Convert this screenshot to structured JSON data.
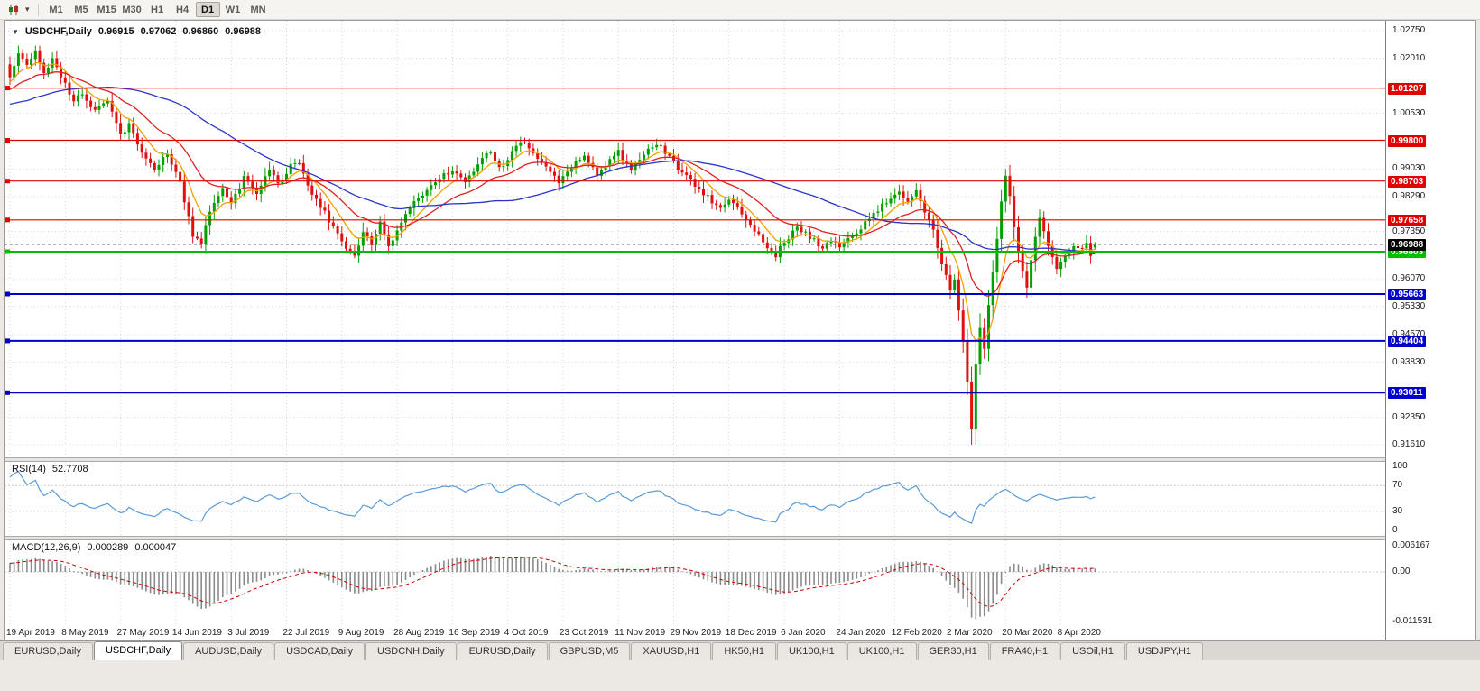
{
  "toolbar": {
    "chart_type_icon": "candlestick-chart-icon",
    "dropdown_icon": "chevron-down-icon",
    "periods": [
      "M1",
      "M5",
      "M15",
      "M30",
      "H1",
      "H4",
      "D1",
      "W1",
      "MN"
    ],
    "active_period": "D1"
  },
  "chart": {
    "title": "USDCHF,Daily",
    "ohlc": {
      "open": "0.96915",
      "high": "0.97062",
      "low": "0.96860",
      "close": "0.96988"
    },
    "current_price": "0.96988",
    "price_axis_ticks": [
      "1.02750",
      "1.02010",
      "1.00530",
      "0.99030",
      "0.98290",
      "0.97350",
      "0.96070",
      "0.95330",
      "0.94570",
      "0.93830",
      "0.92350",
      "0.91610"
    ],
    "hlines": [
      {
        "value": "1.01207",
        "color": "#e00000",
        "kind": "resistance"
      },
      {
        "value": "0.99800",
        "color": "#e00000",
        "kind": "resistance"
      },
      {
        "value": "0.98703",
        "color": "#e00000",
        "kind": "resistance"
      },
      {
        "value": "0.97658",
        "color": "#e00000",
        "kind": "resistance"
      },
      {
        "value": "0.96803",
        "color": "#00bb00",
        "kind": "level"
      },
      {
        "value": "0.95663",
        "color": "#0000cc",
        "kind": "support"
      },
      {
        "value": "0.94404",
        "color": "#0000cc",
        "kind": "support"
      },
      {
        "value": "0.93011",
        "color": "#0000cc",
        "kind": "support"
      }
    ],
    "date_ticks": [
      "19 Apr 2019",
      "8 May 2019",
      "27 May 2019",
      "14 Jun 2019",
      "3 Jul 2019",
      "22 Jul 2019",
      "9 Aug 2019",
      "28 Aug 2019",
      "16 Sep 2019",
      "4 Oct 2019",
      "23 Oct 2019",
      "11 Nov 2019",
      "29 Nov 2019",
      "18 Dec 2019",
      "6 Jan 2020",
      "24 Jan 2020",
      "12 Feb 2020",
      "2 Mar 2020",
      "20 Mar 2020",
      "8 Apr 2020"
    ]
  },
  "rsi": {
    "label": "RSI(14)",
    "value": "52.7708",
    "levels": [
      "100",
      "70",
      "30",
      "0"
    ]
  },
  "macd": {
    "label": "MACD(12,26,9)",
    "value_main": "0.000289",
    "value_signal": "0.000047",
    "levels": [
      "0.006167",
      "0.00",
      "-0.011531"
    ]
  },
  "tabs": {
    "items": [
      "EURUSD,Daily",
      "USDCHF,Daily",
      "AUDUSD,Daily",
      "USDCAD,Daily",
      "USDCNH,Daily",
      "EURUSD,Daily",
      "GBPUSD,M5",
      "XAUUSD,H1",
      "HK50,H1",
      "UK100,H1",
      "UK100,H1",
      "GER30,H1",
      "FRA40,H1",
      "USOil,H1",
      "USDJPY,H1"
    ],
    "active_index": 1
  },
  "chart_data": {
    "type": "candlestick",
    "symbol": "USDCHF",
    "timeframe": "D1",
    "visible_range": {
      "price_top": 1.0275,
      "price_bottom": 0.9161,
      "first_date": "19 Apr 2019",
      "last_date": "8 Apr 2020"
    },
    "bars_per_gridline": 13,
    "bar_count": 256,
    "last_bar": {
      "open": 0.96915,
      "high": 0.97062,
      "low": 0.9686,
      "close": 0.96988
    },
    "extremes": {
      "crash_low": {
        "index": 226,
        "price": 0.9161
      },
      "rebound_high": {
        "index": 234,
        "price": 0.9903
      }
    },
    "close_path_anchors": [
      [
        0,
        1.015
      ],
      [
        2,
        1.021
      ],
      [
        4,
        1.0185
      ],
      [
        6,
        1.0218
      ],
      [
        8,
        1.016
      ],
      [
        10,
        1.0192
      ],
      [
        13,
        1.0135
      ],
      [
        15,
        1.0082
      ],
      [
        17,
        1.011
      ],
      [
        20,
        1.006
      ],
      [
        23,
        1.0086
      ],
      [
        26,
        0.9996
      ],
      [
        28,
        1.0022
      ],
      [
        31,
        0.9946
      ],
      [
        34,
        0.9902
      ],
      [
        37,
        0.9944
      ],
      [
        40,
        0.9862
      ],
      [
        43,
        0.9726
      ],
      [
        45,
        0.97
      ],
      [
        47,
        0.9788
      ],
      [
        50,
        0.9846
      ],
      [
        52,
        0.982
      ],
      [
        55,
        0.9876
      ],
      [
        58,
        0.9846
      ],
      [
        61,
        0.9898
      ],
      [
        63,
        0.9866
      ],
      [
        66,
        0.9906
      ],
      [
        68,
        0.992
      ],
      [
        70,
        0.9856
      ],
      [
        73,
        0.98
      ],
      [
        76,
        0.9746
      ],
      [
        78,
        0.9712
      ],
      [
        81,
        0.9662
      ],
      [
        83,
        0.973
      ],
      [
        85,
        0.9696
      ],
      [
        87,
        0.9756
      ],
      [
        89,
        0.9686
      ],
      [
        91,
        0.9736
      ],
      [
        94,
        0.98
      ],
      [
        97,
        0.984
      ],
      [
        100,
        0.9868
      ],
      [
        104,
        0.99
      ],
      [
        107,
        0.9868
      ],
      [
        110,
        0.9916
      ],
      [
        113,
        0.9948
      ],
      [
        115,
        0.9906
      ],
      [
        117,
        0.993
      ],
      [
        120,
        0.9982
      ],
      [
        123,
        0.9946
      ],
      [
        126,
        0.9906
      ],
      [
        129,
        0.9872
      ],
      [
        132,
        0.9912
      ],
      [
        135,
        0.9936
      ],
      [
        138,
        0.989
      ],
      [
        141,
        0.992
      ],
      [
        143,
        0.9946
      ],
      [
        146,
        0.9902
      ],
      [
        149,
        0.9938
      ],
      [
        152,
        0.9972
      ],
      [
        155,
        0.9936
      ],
      [
        158,
        0.9896
      ],
      [
        161,
        0.9856
      ],
      [
        164,
        0.9828
      ],
      [
        167,
        0.9796
      ],
      [
        169,
        0.9822
      ],
      [
        172,
        0.9788
      ],
      [
        175,
        0.9738
      ],
      [
        178,
        0.9692
      ],
      [
        180,
        0.9668
      ],
      [
        182,
        0.9712
      ],
      [
        185,
        0.9746
      ],
      [
        188,
        0.9718
      ],
      [
        191,
        0.9688
      ],
      [
        193,
        0.9716
      ],
      [
        195,
        0.9692
      ],
      [
        198,
        0.9722
      ],
      [
        201,
        0.9758
      ],
      [
        204,
        0.9792
      ],
      [
        207,
        0.9826
      ],
      [
        209,
        0.984
      ],
      [
        211,
        0.9812
      ],
      [
        213,
        0.9846
      ],
      [
        215,
        0.9788
      ],
      [
        217,
        0.9738
      ],
      [
        219,
        0.9652
      ],
      [
        221,
        0.9576
      ],
      [
        222,
        0.9602
      ],
      [
        223,
        0.9522
      ],
      [
        224,
        0.9442
      ],
      [
        225,
        0.9332
      ],
      [
        226,
        0.9205
      ],
      [
        227,
        0.9372
      ],
      [
        228,
        0.9472
      ],
      [
        229,
        0.9422
      ],
      [
        230,
        0.9536
      ],
      [
        231,
        0.9622
      ],
      [
        232,
        0.9712
      ],
      [
        233,
        0.9816
      ],
      [
        234,
        0.9882
      ],
      [
        235,
        0.9828
      ],
      [
        236,
        0.9746
      ],
      [
        237,
        0.9682
      ],
      [
        238,
        0.9628
      ],
      [
        239,
        0.9586
      ],
      [
        240,
        0.9656
      ],
      [
        241,
        0.9722
      ],
      [
        242,
        0.9772
      ],
      [
        243,
        0.9736
      ],
      [
        244,
        0.9696
      ],
      [
        245,
        0.9662
      ],
      [
        246,
        0.964
      ],
      [
        248,
        0.9672
      ],
      [
        250,
        0.9696
      ],
      [
        252,
        0.9682
      ],
      [
        253,
        0.9706
      ],
      [
        254,
        0.9672
      ],
      [
        255,
        0.96988
      ]
    ],
    "colors": {
      "bull": "#00a000",
      "bear": "#e01010",
      "ma_fast": "#f2a000",
      "ma_mid": "#e02020",
      "ma_slow": "#2b35c8",
      "rsi_line": "#5b9bd5",
      "macd_histogram": "#8a8a8a",
      "macd_signal": "#cc0000",
      "grid": "#d6d6d6"
    },
    "moving_averages": [
      {
        "name": "fast",
        "method": "ema",
        "period": 8,
        "color_key": "ma_fast"
      },
      {
        "name": "mid",
        "method": "ema",
        "period": 21,
        "color_key": "ma_mid"
      },
      {
        "name": "slow",
        "method": "sma",
        "period": 50,
        "color_key": "ma_slow"
      }
    ],
    "indicators": [
      {
        "name": "RSI",
        "period": 14
      },
      {
        "name": "MACD",
        "fast": 12,
        "slow": 26,
        "signal": 9
      }
    ]
  }
}
